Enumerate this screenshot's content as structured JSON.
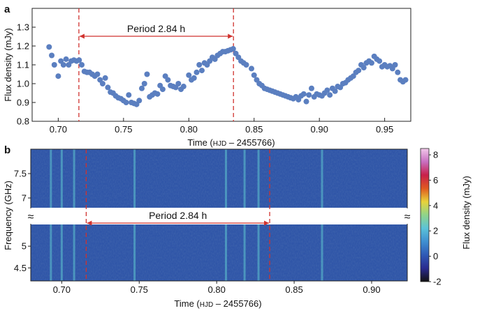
{
  "chart_data": [
    {
      "panel_label": "a",
      "type": "scatter",
      "ylabel": "Flux density (mJy)",
      "xlabel_prefix": "Time (",
      "xlabel_hjd": "HJD",
      "xlabel_suffix": " – 2455766)",
      "xlim": [
        0.68,
        0.97
      ],
      "ylim": [
        0.8,
        1.4
      ],
      "x_ticks": [
        "0.70",
        "0.75",
        "0.80",
        "0.85",
        "0.90",
        "0.95"
      ],
      "x_tick_values": [
        0.7,
        0.75,
        0.8,
        0.85,
        0.9,
        0.95
      ],
      "y_ticks": [
        "0.8",
        "0.9",
        "1.0",
        "1.1",
        "1.2",
        "1.3"
      ],
      "y_tick_values": [
        0.8,
        0.9,
        1.0,
        1.1,
        1.2,
        1.3
      ],
      "marker_color": "#5b7fc0",
      "period_markers": [
        0.7158,
        0.8342
      ],
      "annotation": "Period 2.84 h",
      "points": [
        [
          0.693,
          1.195
        ],
        [
          0.695,
          1.15
        ],
        [
          0.697,
          1.1
        ],
        [
          0.7,
          1.04
        ],
        [
          0.702,
          1.12
        ],
        [
          0.704,
          1.1
        ],
        [
          0.706,
          1.13
        ],
        [
          0.708,
          1.1
        ],
        [
          0.71,
          1.12
        ],
        [
          0.712,
          1.125
        ],
        [
          0.714,
          1.12
        ],
        [
          0.716,
          1.125
        ],
        [
          0.718,
          1.1
        ],
        [
          0.72,
          1.065
        ],
        [
          0.722,
          1.06
        ],
        [
          0.724,
          1.06
        ],
        [
          0.726,
          1.05
        ],
        [
          0.728,
          1.04
        ],
        [
          0.73,
          1.05
        ],
        [
          0.732,
          1.02
        ],
        [
          0.734,
          1.0
        ],
        [
          0.736,
          1.03
        ],
        [
          0.738,
          0.98
        ],
        [
          0.74,
          0.955
        ],
        [
          0.742,
          0.95
        ],
        [
          0.744,
          0.935
        ],
        [
          0.746,
          0.925
        ],
        [
          0.748,
          0.92
        ],
        [
          0.75,
          0.91
        ],
        [
          0.752,
          0.9
        ],
        [
          0.754,
          0.94
        ],
        [
          0.756,
          0.9
        ],
        [
          0.758,
          0.895
        ],
        [
          0.76,
          0.89
        ],
        [
          0.762,
          0.91
        ],
        [
          0.764,
          0.975
        ],
        [
          0.766,
          1.0
        ],
        [
          0.768,
          1.05
        ],
        [
          0.77,
          0.93
        ],
        [
          0.772,
          0.94
        ],
        [
          0.774,
          0.95
        ],
        [
          0.776,
          0.945
        ],
        [
          0.778,
          0.99
        ],
        [
          0.78,
          0.97
        ],
        [
          0.782,
          1.04
        ],
        [
          0.784,
          1.02
        ],
        [
          0.786,
          0.99
        ],
        [
          0.788,
          0.985
        ],
        [
          0.79,
          0.98
        ],
        [
          0.792,
          1.0
        ],
        [
          0.794,
          0.97
        ],
        [
          0.796,
          0.985
        ],
        [
          0.8,
          1.045
        ],
        [
          0.802,
          1.02
        ],
        [
          0.804,
          1.03
        ],
        [
          0.806,
          1.06
        ],
        [
          0.808,
          1.1
        ],
        [
          0.81,
          1.07
        ],
        [
          0.812,
          1.11
        ],
        [
          0.814,
          1.1
        ],
        [
          0.816,
          1.12
        ],
        [
          0.818,
          1.14
        ],
        [
          0.82,
          1.13
        ],
        [
          0.822,
          1.15
        ],
        [
          0.824,
          1.16
        ],
        [
          0.826,
          1.17
        ],
        [
          0.828,
          1.17
        ],
        [
          0.83,
          1.175
        ],
        [
          0.832,
          1.18
        ],
        [
          0.834,
          1.185
        ],
        [
          0.836,
          1.16
        ],
        [
          0.838,
          1.14
        ],
        [
          0.84,
          1.12
        ],
        [
          0.842,
          1.11
        ],
        [
          0.844,
          1.1
        ],
        [
          0.848,
          1.08
        ],
        [
          0.85,
          1.045
        ],
        [
          0.852,
          1.02
        ],
        [
          0.854,
          1.0
        ],
        [
          0.856,
          0.99
        ],
        [
          0.858,
          0.975
        ],
        [
          0.86,
          0.97
        ],
        [
          0.862,
          0.965
        ],
        [
          0.864,
          0.96
        ],
        [
          0.866,
          0.955
        ],
        [
          0.868,
          0.95
        ],
        [
          0.87,
          0.945
        ],
        [
          0.872,
          0.94
        ],
        [
          0.874,
          0.935
        ],
        [
          0.876,
          0.93
        ],
        [
          0.878,
          0.925
        ],
        [
          0.88,
          0.92
        ],
        [
          0.882,
          0.93
        ],
        [
          0.884,
          0.915
        ],
        [
          0.886,
          0.935
        ],
        [
          0.888,
          0.945
        ],
        [
          0.89,
          0.905
        ],
        [
          0.892,
          0.94
        ],
        [
          0.894,
          0.975
        ],
        [
          0.896,
          0.93
        ],
        [
          0.898,
          0.945
        ],
        [
          0.9,
          0.94
        ],
        [
          0.902,
          0.935
        ],
        [
          0.904,
          0.95
        ],
        [
          0.906,
          0.965
        ],
        [
          0.908,
          0.94
        ],
        [
          0.91,
          0.975
        ],
        [
          0.912,
          0.96
        ],
        [
          0.914,
          0.985
        ],
        [
          0.916,
          0.98
        ],
        [
          0.918,
          1.0
        ],
        [
          0.92,
          1.005
        ],
        [
          0.922,
          1.02
        ],
        [
          0.924,
          1.03
        ],
        [
          0.926,
          1.04
        ],
        [
          0.928,
          1.06
        ],
        [
          0.93,
          1.07
        ],
        [
          0.932,
          1.1
        ],
        [
          0.934,
          1.085
        ],
        [
          0.936,
          1.11
        ],
        [
          0.938,
          1.12
        ],
        [
          0.94,
          1.11
        ],
        [
          0.942,
          1.145
        ],
        [
          0.944,
          1.13
        ],
        [
          0.946,
          1.12
        ],
        [
          0.948,
          1.09
        ],
        [
          0.95,
          1.1
        ],
        [
          0.952,
          1.09
        ],
        [
          0.954,
          1.095
        ],
        [
          0.956,
          1.08
        ],
        [
          0.958,
          1.1
        ],
        [
          0.96,
          1.06
        ],
        [
          0.962,
          1.02
        ],
        [
          0.964,
          1.01
        ],
        [
          0.966,
          1.02
        ]
      ]
    },
    {
      "panel_label": "b",
      "type": "heatmap",
      "ylabel": "Frequency (GHz)",
      "xlabel_prefix": "Time (",
      "xlabel_hjd": "HJD",
      "xlabel_suffix": " – 2455766)",
      "xlim": [
        0.68,
        0.923
      ],
      "x_ticks": [
        "0.70",
        "0.75",
        "0.80",
        "0.85",
        "0.90"
      ],
      "x_tick_values": [
        0.7,
        0.75,
        0.8,
        0.85,
        0.9
      ],
      "upper_band_ylim": [
        6.8,
        8.0
      ],
      "upper_y_ticks": [
        "7",
        "7.5"
      ],
      "upper_y_tick_values": [
        7.0,
        7.5
      ],
      "lower_band_ylim": [
        4.2,
        5.5
      ],
      "lower_y_ticks": [
        "4.5",
        "5"
      ],
      "lower_y_tick_values": [
        4.5,
        5.0
      ],
      "axis_break_symbol": "≈",
      "period_markers": [
        0.7158,
        0.8342
      ],
      "annotation": "Period 2.84 h",
      "bright_columns": [
        0.693,
        0.7,
        0.708,
        0.747,
        0.806,
        0.818,
        0.827,
        0.868
      ],
      "colorbar": {
        "label": "Flux density (mJy)",
        "range": [
          -2,
          8.5
        ],
        "ticks": [
          "-2",
          "0",
          "2",
          "4",
          "6",
          "8"
        ],
        "tick_values": [
          -2,
          0,
          2,
          4,
          6,
          8
        ],
        "colors": [
          "#111111",
          "#2a2b8f",
          "#2f59b6",
          "#3f8fd1",
          "#5bc2d8",
          "#8fd48a",
          "#e8d33a",
          "#e05a20",
          "#c8204a",
          "#c86fc0",
          "#f2c8ea"
        ]
      }
    }
  ]
}
